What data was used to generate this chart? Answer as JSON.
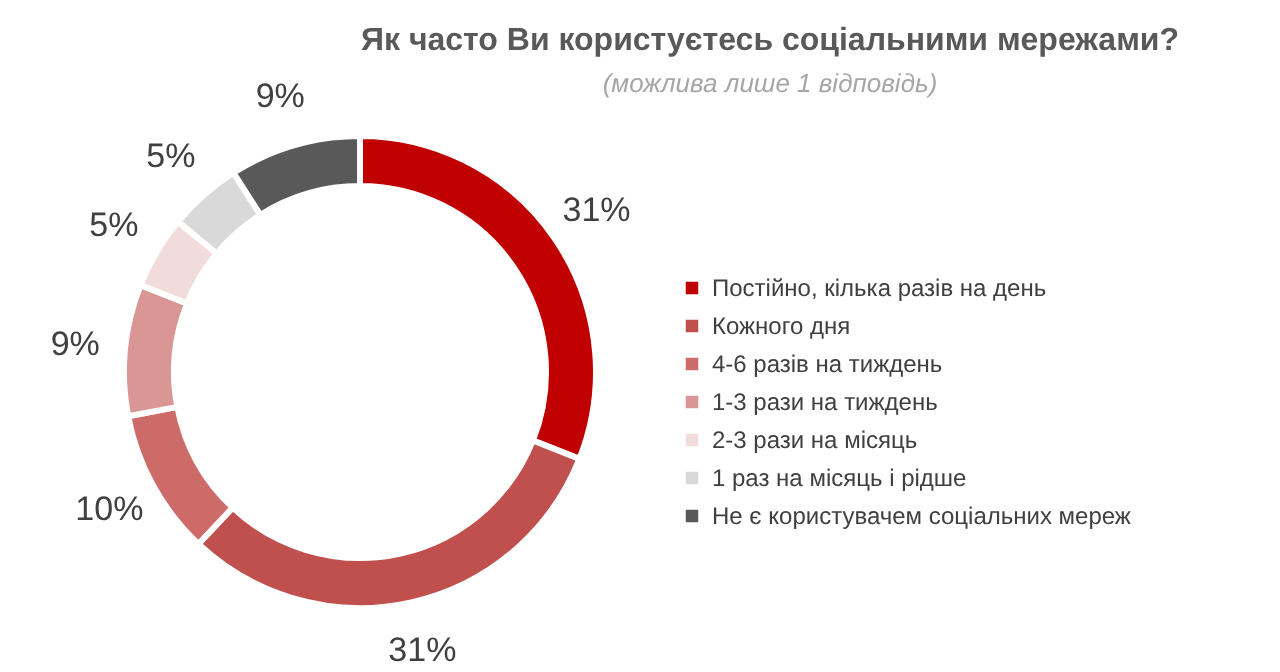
{
  "chart_data": {
    "type": "donut",
    "title": "Як часто Ви користуєтесь соціальними мережами?",
    "subtitle": "(можлива лише 1 відповідь)",
    "categories": [
      "Постійно, кілька разів на день",
      "Кожного дня",
      "4-6 разів на тиждень",
      "1-3 рази на тиждень",
      "2-3 рази на місяць",
      "1 раз на місяць і рідше",
      "Не є користувачем соціальних мереж"
    ],
    "values": [
      31,
      31,
      10,
      9,
      5,
      5,
      9
    ],
    "value_labels": [
      "31%",
      "31%",
      "10%",
      "9%",
      "5%",
      "5%",
      "9%"
    ],
    "colors": [
      "#c00000",
      "#c0504d",
      "#cd6b69",
      "#d99694",
      "#f2dcdb",
      "#d9d9d9",
      "#595959"
    ],
    "legend": "right"
  }
}
